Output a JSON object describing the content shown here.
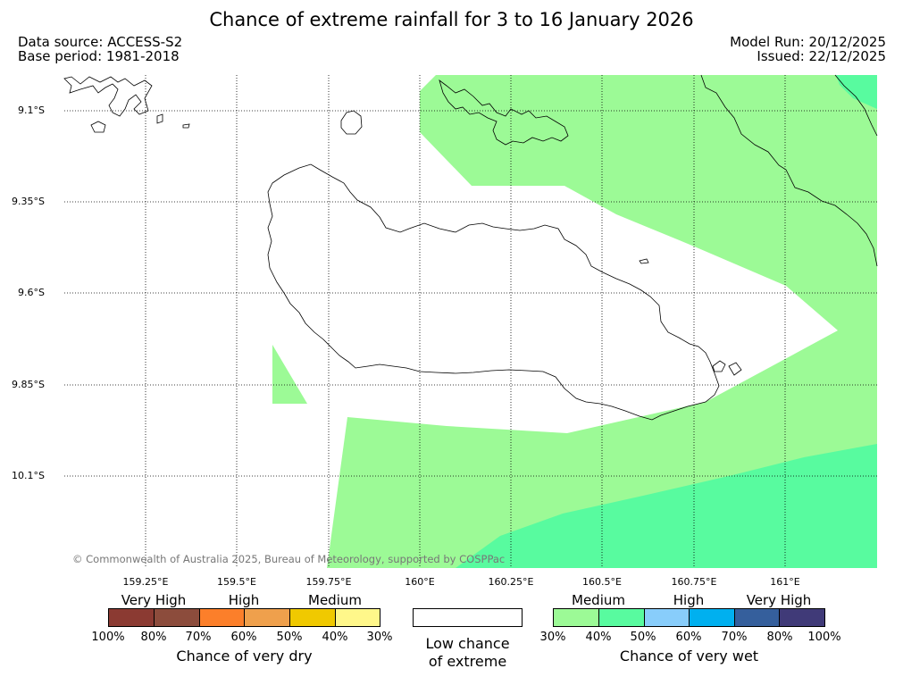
{
  "header": {
    "title": "Chance of extreme rainfall for 3 to 16 January 2026",
    "data_source": "Data source: ACCESS-S2",
    "base_period": "Base period: 1981-2018",
    "model_run": "Model Run: 20/12/2025",
    "issued": "Issued: 22/12/2025"
  },
  "map": {
    "lat_labels": [
      "9.1°S",
      "9.35°S",
      "9.6°S",
      "9.85°S",
      "10.1°S"
    ],
    "lon_labels": [
      "159.25°E",
      "159.5°E",
      "159.75°E",
      "160°E",
      "160.25°E",
      "160.5°E",
      "160.75°E",
      "161°E"
    ],
    "copyright": "© Commonwealth of Australia 2025, Bureau of Meteorology, supported by COSPPac",
    "colors": {
      "medium_wet": "#9cfa96",
      "high_wet": "#58fb9f",
      "coast": "#000000",
      "grid": "#000000"
    }
  },
  "legend": {
    "dry": {
      "categories": [
        "Very High",
        "High",
        "Medium"
      ],
      "ticks": [
        "100%",
        "80%",
        "70%",
        "60%",
        "50%",
        "40%",
        "30%"
      ],
      "colors": [
        "#8b3a32",
        "#8c4c3c",
        "#fc7f2a",
        "#efa04c",
        "#f0c900",
        "#fff78a"
      ],
      "caption": "Chance of very dry"
    },
    "neutral": {
      "caption_line1": "Low chance",
      "caption_line2": "of extreme"
    },
    "wet": {
      "categories": [
        "Medium",
        "High",
        "Very High"
      ],
      "ticks": [
        "30%",
        "40%",
        "50%",
        "60%",
        "70%",
        "80%",
        "100%"
      ],
      "colors": [
        "#9cfa96",
        "#58fb9f",
        "#88cdfb",
        "#00b0ef",
        "#355f9c",
        "#403a78"
      ],
      "caption": "Chance of very wet"
    }
  }
}
